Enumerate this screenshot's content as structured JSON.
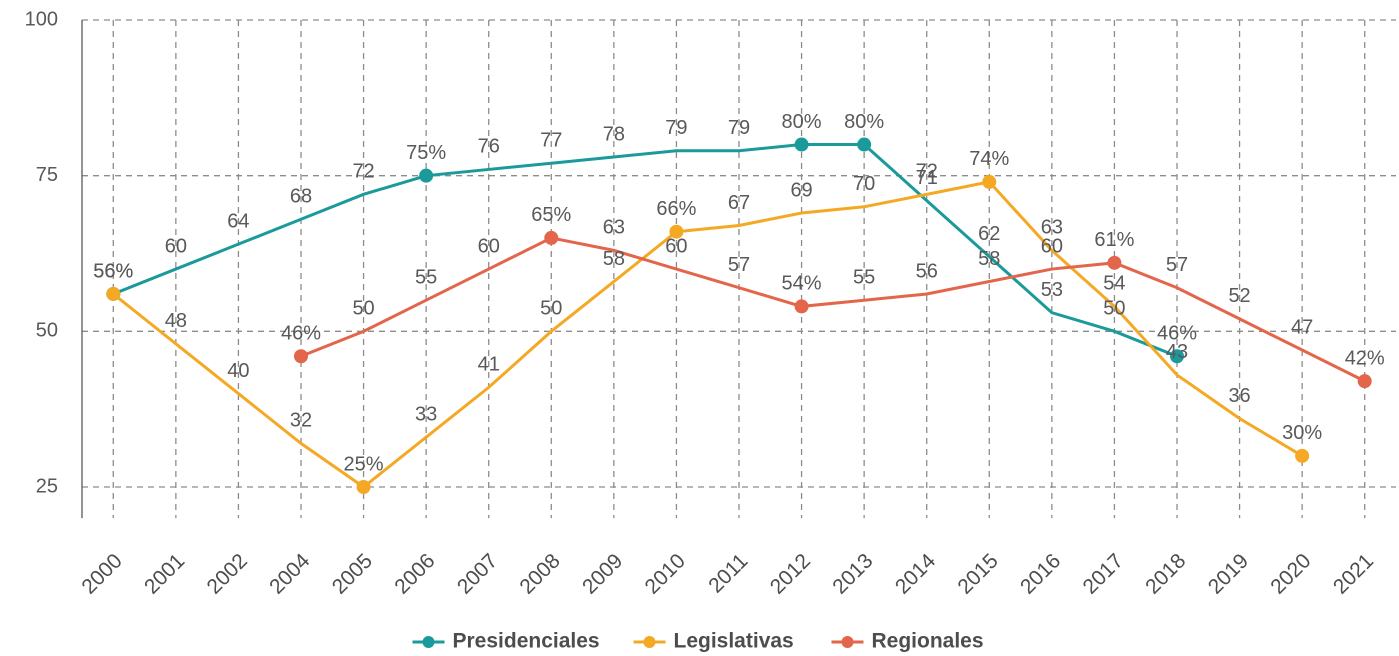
{
  "chart_data": {
    "type": "line",
    "categories": [
      "2000",
      "2001",
      "2002",
      "2004",
      "2005",
      "2006",
      "2007",
      "2008",
      "2009",
      "2010",
      "2011",
      "2012",
      "2013",
      "2014",
      "2015",
      "2016",
      "2017",
      "2018",
      "2019",
      "2020",
      "2021"
    ],
    "series": [
      {
        "name": "Presidenciales",
        "color": "#1a9a9a",
        "values": [
          56,
          60,
          64,
          68,
          72,
          75,
          76,
          77,
          78,
          79,
          79,
          80,
          80,
          71,
          62,
          53,
          50,
          46,
          null,
          null,
          null
        ],
        "value_labels": [
          "56%",
          "60",
          "64",
          "68",
          "72",
          "75%",
          "76",
          "77",
          "78",
          "79",
          "79",
          "80%",
          "80%",
          "71",
          "62",
          "53",
          "50",
          "46%",
          null,
          null,
          null
        ]
      },
      {
        "name": "Legislativas",
        "color": "#f5a824",
        "values": [
          56,
          48,
          40,
          32,
          25,
          33,
          41,
          50,
          58,
          66,
          67,
          69,
          70,
          72,
          74,
          63,
          54,
          43,
          36,
          30,
          null
        ],
        "value_labels": [
          "56%",
          "48",
          "40",
          "32",
          "25%",
          "33",
          "41",
          "50",
          "58",
          "66%",
          "67",
          "69",
          "70",
          "72",
          "74%",
          "63",
          "54",
          "43",
          "36",
          "30%",
          null
        ]
      },
      {
        "name": "Regionales",
        "color": "#e3654a",
        "values": [
          null,
          null,
          null,
          46,
          50,
          55,
          60,
          65,
          63,
          60,
          57,
          54,
          55,
          56,
          58,
          60,
          61,
          57,
          52,
          47,
          42
        ],
        "value_labels": [
          null,
          null,
          null,
          "46%",
          "50",
          "55",
          "60",
          "65%",
          "63",
          "60",
          "57",
          "54%",
          "55",
          "56",
          "58",
          "60",
          "61%",
          "57",
          "52",
          "47",
          "42%"
        ]
      }
    ],
    "ylim": [
      20,
      100
    ],
    "yticks": [
      25,
      50,
      75,
      100
    ],
    "grid": true,
    "legend": "bottom"
  }
}
